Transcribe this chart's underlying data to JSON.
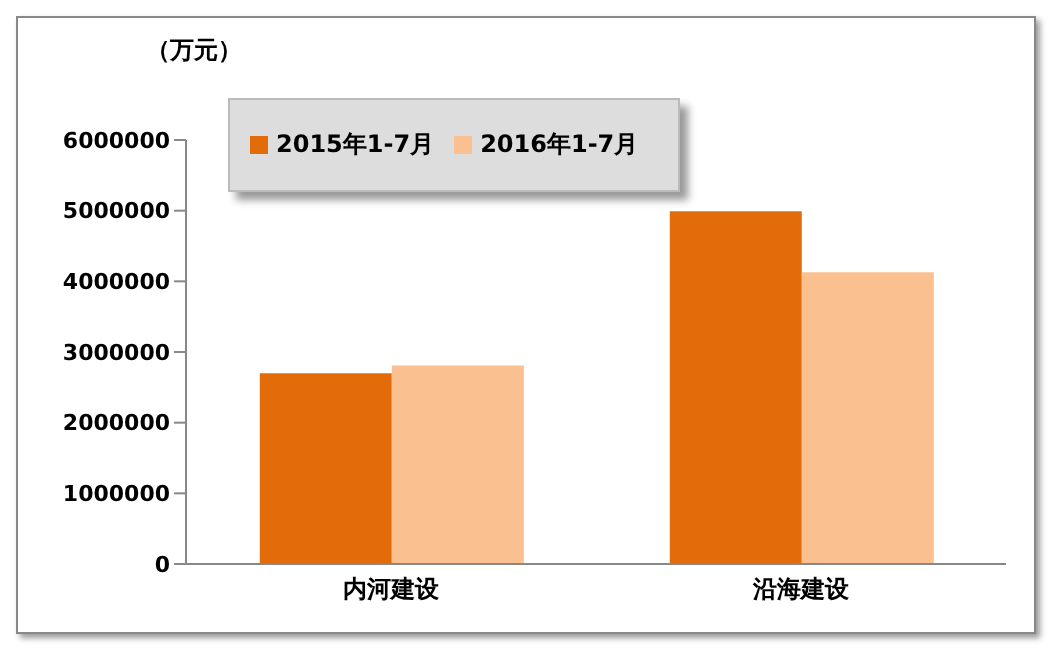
{
  "chart_data": {
    "type": "bar",
    "ylabel": "（万元）",
    "categories": [
      "内河建设",
      "沿海建设"
    ],
    "series": [
      {
        "name": "2015年1-7月",
        "color": "#e36c0a",
        "values": [
          2700000,
          4990000
        ]
      },
      {
        "name": "2016年1-7月",
        "color": "#fac090",
        "values": [
          2810000,
          4130000
        ]
      }
    ],
    "ylim": [
      0,
      6000000
    ],
    "yticks": [
      0,
      1000000,
      2000000,
      3000000,
      4000000,
      5000000,
      6000000
    ],
    "grid": false,
    "legend": "top left"
  }
}
